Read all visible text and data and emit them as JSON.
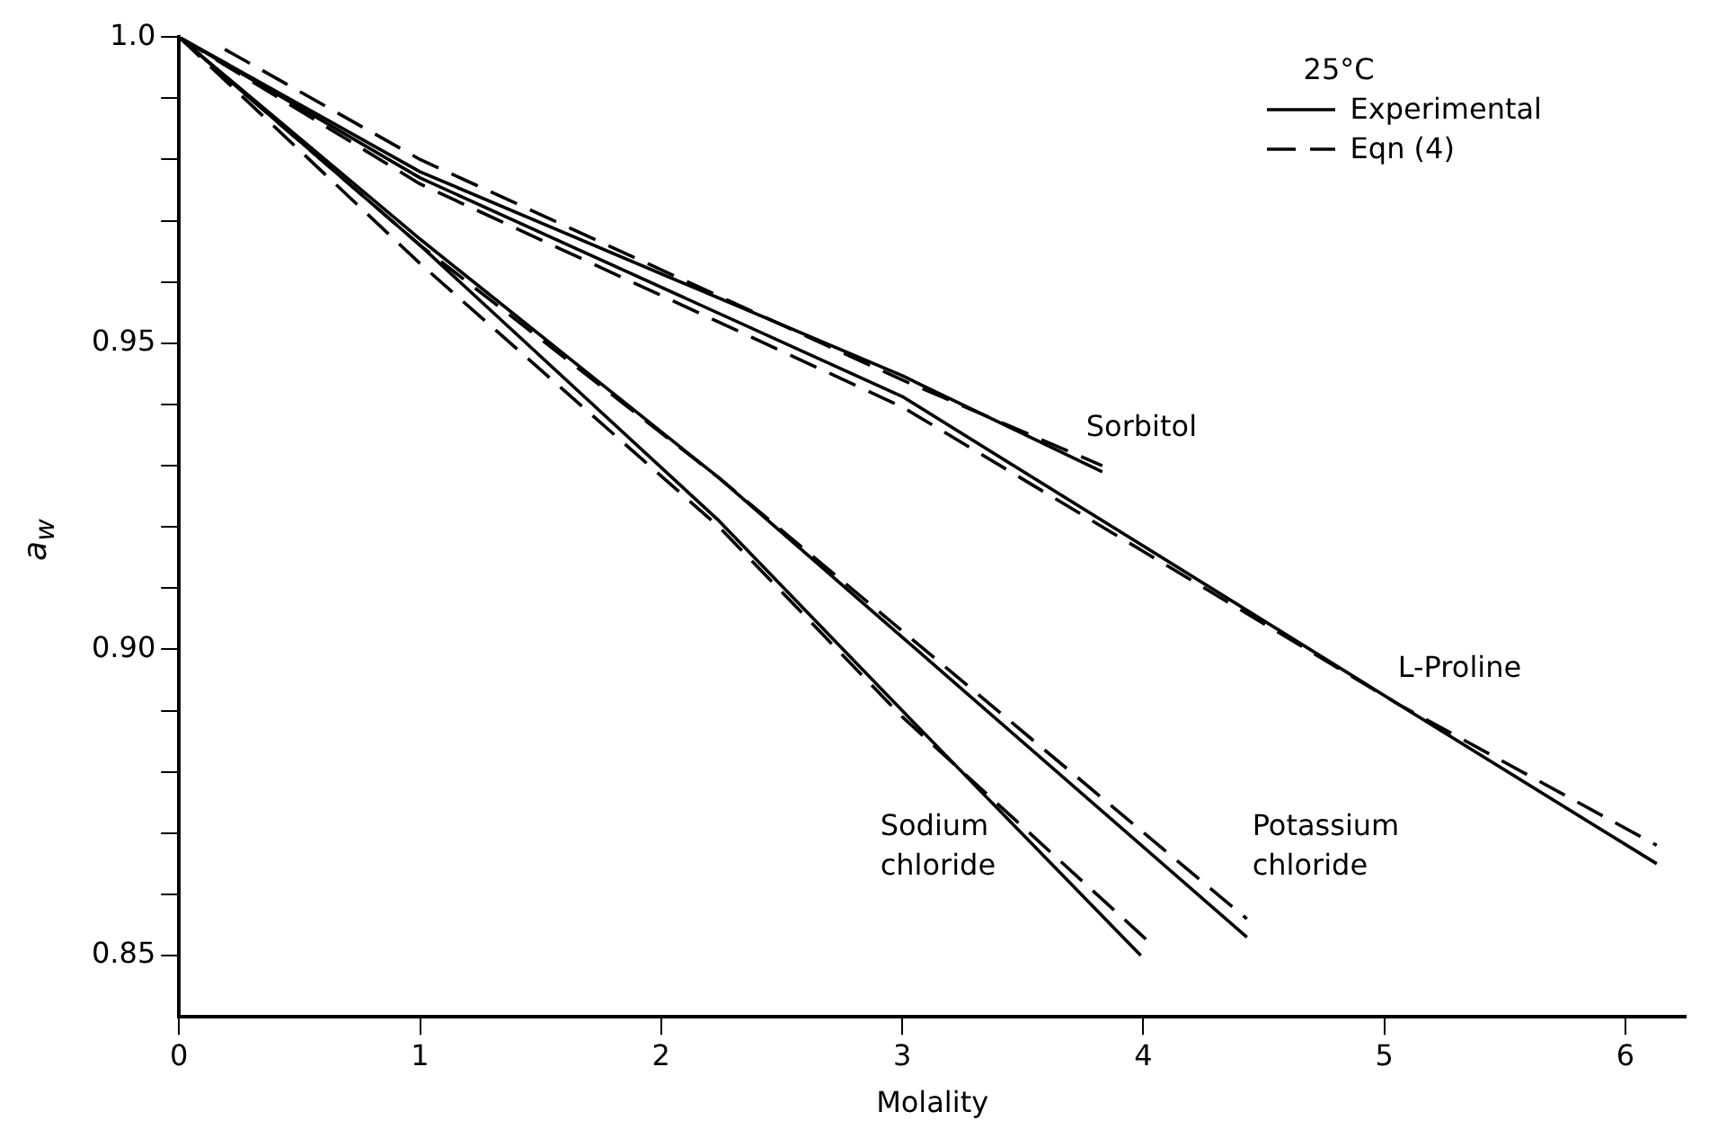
{
  "chart_data": {
    "type": "line",
    "xlabel": "Molality",
    "ylabel": "a$_{w}$",
    "legend_title": "25°C",
    "legend": "top right",
    "grid": false,
    "marker": "none",
    "xlim": [
      0,
      6.25
    ],
    "xticks": [
      0,
      1,
      2,
      3,
      4,
      5,
      6
    ],
    "ylim": [
      0.84,
      1.0
    ],
    "yticks": [
      {
        "value": 0.85,
        "label": "0.85"
      },
      {
        "value": 0.86,
        "label": null
      },
      {
        "value": 0.87,
        "label": null
      },
      {
        "value": 0.88,
        "label": null
      },
      {
        "value": 0.89,
        "label": null
      },
      {
        "value": 0.9,
        "label": "0.90"
      },
      {
        "value": 0.91,
        "label": null
      },
      {
        "value": 0.92,
        "label": null
      },
      {
        "value": 0.93,
        "label": null
      },
      {
        "value": 0.94,
        "label": null
      },
      {
        "value": 0.95,
        "label": "0.95"
      },
      {
        "value": 0.96,
        "label": null
      },
      {
        "value": 0.97,
        "label": null
      },
      {
        "value": 0.98,
        "label": null
      },
      {
        "value": 0.99,
        "label": null
      },
      {
        "value": 1.0,
        "label": "1.0"
      }
    ],
    "series": [
      {
        "name": "Experimental",
        "color": "#000000",
        "line_style": "solid",
        "x": [
          0,
          1,
          3,
          3.83
        ],
        "values": [
          1.0,
          0.978,
          0.9447,
          0.929
        ]
      },
      {
        "name": "Eqn (4)",
        "color": "#000000",
        "line_style": "dashed",
        "x": [
          0.19,
          1,
          3,
          3.83
        ],
        "values": [
          0.998,
          0.98,
          0.944,
          0.93
        ]
      },
      {
        "color": "#000000",
        "line_style": "solid",
        "x": [
          0,
          1,
          3,
          5.06,
          6.13
        ],
        "values": [
          1.0,
          0.977,
          0.9413,
          0.891,
          0.865
        ]
      },
      {
        "color": "#000000",
        "line_style": "dashed",
        "x": [
          0,
          1,
          3,
          5.06,
          6.13
        ],
        "values": [
          1.0,
          0.976,
          0.9396,
          0.891,
          0.868
        ]
      },
      {
        "color": "#000000",
        "line_style": "solid",
        "x": [
          0,
          1,
          2.24,
          3,
          4.43
        ],
        "values": [
          1.0,
          0.967,
          0.928,
          0.902,
          0.853
        ]
      },
      {
        "color": "#000000",
        "line_style": "dashed",
        "x": [
          0,
          1,
          2.24,
          3,
          4.43
        ],
        "values": [
          1.0,
          0.966,
          0.928,
          0.903,
          0.856
        ]
      },
      {
        "color": "#000000",
        "line_style": "solid",
        "x": [
          0,
          1,
          2.24,
          3,
          3.99
        ],
        "values": [
          1.0,
          0.966,
          0.921,
          0.89,
          0.85
        ]
      },
      {
        "color": "#000000",
        "line_style": "dashed",
        "x": [
          0,
          1,
          2.24,
          3,
          4.03
        ],
        "values": [
          1.0,
          0.963,
          0.92,
          0.889,
          0.852
        ]
      }
    ],
    "annotations": [
      "Sorbitol",
      "L-Proline",
      "Sodium\nchloride",
      "Potassium\nchloride"
    ]
  }
}
